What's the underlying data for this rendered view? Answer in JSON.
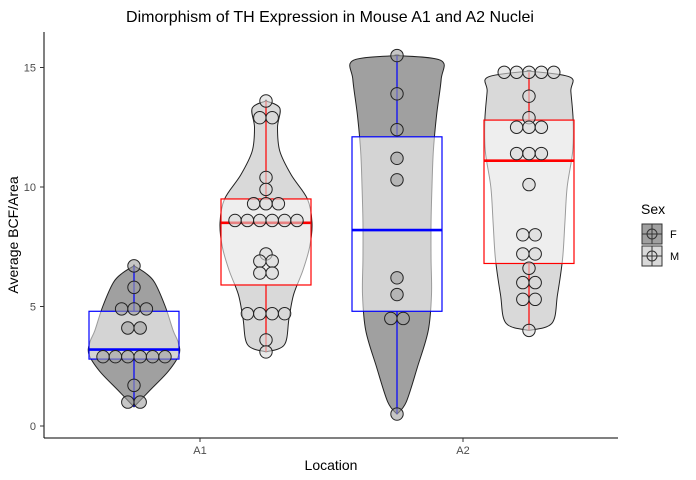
{
  "chart_data": {
    "type": "violin-box-dot",
    "title": "Dimorphism of TH Expression in Mouse A1 and A2 Nuclei",
    "xlabel": "Location",
    "ylabel": "Average BCF/Area",
    "categories": [
      "A1",
      "A2"
    ],
    "ylim": [
      -0.5,
      16.5
    ],
    "yticks": [
      0,
      5,
      10,
      15
    ],
    "grid": false,
    "legend": {
      "title": "Sex",
      "position": "right",
      "entries": [
        {
          "label": "F",
          "fill": "#a0a0a0"
        },
        {
          "label": "M",
          "fill": "#d9d9d9"
        }
      ]
    },
    "series": [
      {
        "category": "A1",
        "sex": "F",
        "violin_fill": "#a0a0a0",
        "box_color": "#0000ff",
        "box": {
          "q1": 2.8,
          "median": 3.2,
          "q3": 4.8,
          "whisker_low": 0.8,
          "whisker_high": 6.7
        },
        "points": [
          6.7,
          5.8,
          4.9,
          4.9,
          4.9,
          4.1,
          4.1,
          2.9,
          2.9,
          2.9,
          2.9,
          2.9,
          2.9,
          1.7,
          1.0,
          1.0
        ],
        "violin": [
          [
            0.8,
            0.0
          ],
          [
            1.5,
            0.35
          ],
          [
            2.3,
            0.75
          ],
          [
            3.0,
            0.98
          ],
          [
            3.5,
            0.96
          ],
          [
            4.0,
            0.85
          ],
          [
            5.0,
            0.68
          ],
          [
            6.0,
            0.45
          ],
          [
            6.4,
            0.25
          ],
          [
            6.7,
            0.0
          ]
        ]
      },
      {
        "category": "A1",
        "sex": "M",
        "violin_fill": "#d9d9d9",
        "box_color": "#ff0000",
        "box": {
          "q1": 5.9,
          "median": 8.5,
          "q3": 9.5,
          "whisker_low": 3.1,
          "whisker_high": 13.6
        },
        "points": [
          13.6,
          12.9,
          12.9,
          10.4,
          9.9,
          9.3,
          9.3,
          9.3,
          8.6,
          8.6,
          8.6,
          8.6,
          8.6,
          8.6,
          7.2,
          6.9,
          6.9,
          6.4,
          6.4,
          4.7,
          4.7,
          4.7,
          4.7,
          3.6,
          3.1
        ],
        "violin": [
          [
            3.1,
            0.0
          ],
          [
            3.4,
            0.4
          ],
          [
            4.5,
            0.5
          ],
          [
            5.5,
            0.6
          ],
          [
            6.5,
            0.8
          ],
          [
            7.5,
            0.95
          ],
          [
            8.5,
            1.0
          ],
          [
            9.5,
            0.9
          ],
          [
            10.5,
            0.55
          ],
          [
            11.5,
            0.3
          ],
          [
            12.5,
            0.25
          ],
          [
            13.3,
            0.3
          ],
          [
            13.6,
            0.0
          ]
        ]
      },
      {
        "category": "A2",
        "sex": "F",
        "violin_fill": "#a0a0a0",
        "box_color": "#0000ff",
        "box": {
          "q1": 4.8,
          "median": 8.2,
          "q3": 12.1,
          "whisker_low": 0.5,
          "whisker_high": 15.5
        },
        "points": [
          15.5,
          13.9,
          12.4,
          11.2,
          10.3,
          6.2,
          5.5,
          4.5,
          4.5,
          0.5
        ],
        "violin": [
          [
            0.5,
            0.0
          ],
          [
            1.0,
            0.2
          ],
          [
            2.5,
            0.45
          ],
          [
            4.0,
            0.68
          ],
          [
            5.5,
            0.75
          ],
          [
            7.0,
            0.74
          ],
          [
            8.5,
            0.74
          ],
          [
            10.0,
            0.76
          ],
          [
            11.5,
            0.79
          ],
          [
            13.0,
            0.86
          ],
          [
            14.5,
            0.96
          ],
          [
            15.3,
            0.95
          ],
          [
            15.5,
            0.0
          ]
        ]
      },
      {
        "category": "A2",
        "sex": "M",
        "violin_fill": "#d9d9d9",
        "box_color": "#ff0000",
        "box": {
          "q1": 6.8,
          "median": 11.1,
          "q3": 12.8,
          "whisker_low": 4.0,
          "whisker_high": 14.8
        },
        "points": [
          14.8,
          14.8,
          14.8,
          14.8,
          14.8,
          13.8,
          12.9,
          12.5,
          12.5,
          12.5,
          11.4,
          11.4,
          11.4,
          10.1,
          8.0,
          8.0,
          7.2,
          7.2,
          6.6,
          6.0,
          6.0,
          5.3,
          5.3,
          4.0
        ],
        "violin": [
          [
            4.0,
            0.0
          ],
          [
            4.3,
            0.5
          ],
          [
            5.5,
            0.62
          ],
          [
            7.0,
            0.73
          ],
          [
            8.5,
            0.78
          ],
          [
            10.0,
            0.83
          ],
          [
            11.5,
            0.95
          ],
          [
            12.8,
            0.96
          ],
          [
            14.0,
            0.91
          ],
          [
            14.6,
            0.89
          ],
          [
            14.85,
            0.0
          ]
        ]
      }
    ]
  }
}
